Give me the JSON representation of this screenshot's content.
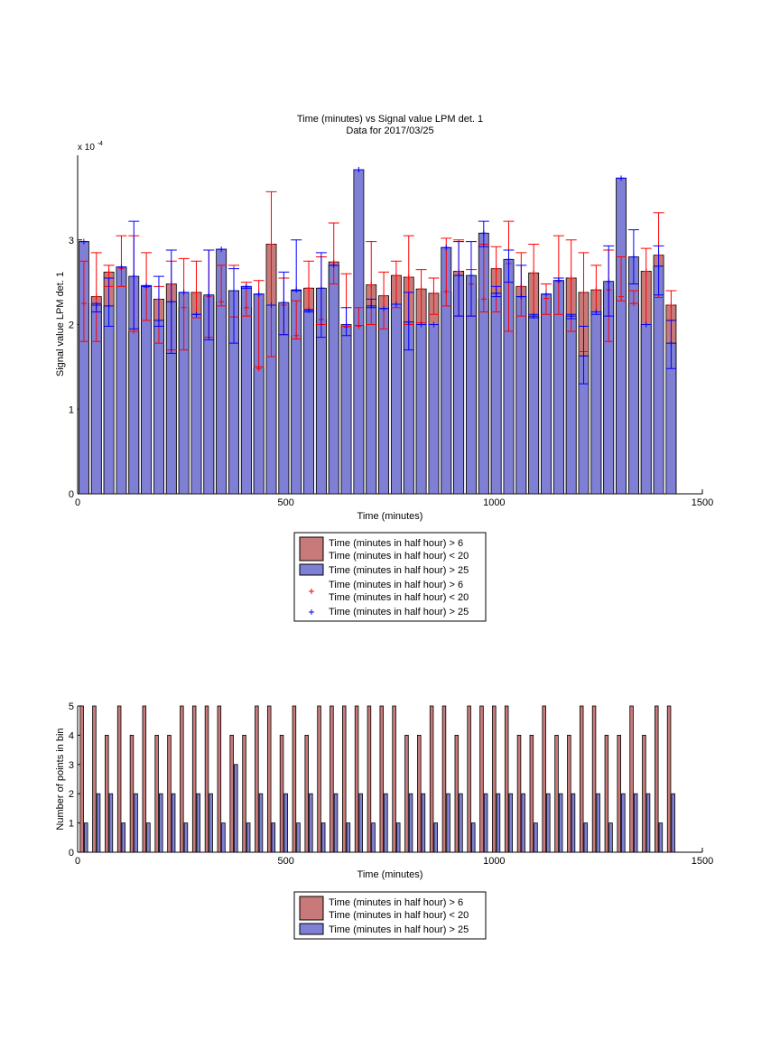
{
  "chart_data": [
    {
      "type": "bar",
      "title": "Time (minutes) vs Signal value LPM det. 1",
      "subtitle": "Data for 2017/03/25",
      "xlabel": "Time (minutes)",
      "ylabel": "Signal value LPM det. 1",
      "y_exponent_label": "x 10",
      "y_exponent_power": "-4",
      "xlim": [
        0,
        1500
      ],
      "ylim": [
        0,
        4.0
      ],
      "y_scale_note": "values in units of 1e-4",
      "xticks": [
        0,
        500,
        1000,
        1500
      ],
      "yticks": [
        0,
        1,
        2,
        3
      ],
      "grid": false,
      "legend_position": "below",
      "bin_width": 24,
      "x": [
        15,
        45,
        75,
        105,
        135,
        165,
        195,
        225,
        255,
        285,
        315,
        345,
        375,
        405,
        435,
        465,
        495,
        525,
        555,
        585,
        615,
        645,
        675,
        705,
        735,
        765,
        795,
        825,
        855,
        885,
        915,
        945,
        975,
        1005,
        1035,
        1065,
        1095,
        1125,
        1155,
        1185,
        1215,
        1245,
        1275,
        1305,
        1335,
        1365,
        1395,
        1425
      ],
      "series": [
        {
          "name": "Time (minutes in half hour) > 6\nTime (minutes in half hour) < 20",
          "color": "#c87a7a",
          "values": [
            2.25,
            2.33,
            2.62,
            2.66,
            1.92,
            2.44,
            2.3,
            2.48,
            2.2,
            2.38,
            2.33,
            2.27,
            2.4,
            2.2,
            1.48,
            2.95,
            2.23,
            1.87,
            2.43,
            2.06,
            2.74,
            1.97,
            1.98,
            2.47,
            2.34,
            2.58,
            2.56,
            2.42,
            2.37,
            2.39,
            2.63,
            2.48,
            2.3,
            2.66,
            2.72,
            2.45,
            2.61,
            2.31,
            2.51,
            2.55,
            2.38,
            2.41,
            2.41,
            2.33,
            2.25,
            2.63,
            2.82,
            2.23
          ],
          "err_low": [
            1.8,
            1.8,
            2.45,
            2.45,
            1.92,
            2.05,
            1.78,
            1.7,
            1.7,
            2.08,
            1.85,
            2.22,
            2.09,
            2.1,
            1.5,
            1.62,
            1.88,
            1.83,
            2.18,
            2.0,
            2.48,
            1.98,
            1.99,
            2.0,
            1.95,
            2.2,
            2.0,
            2.02,
            2.12,
            2.22,
            2.1,
            2.1,
            2.15,
            2.15,
            1.92,
            2.1,
            2.08,
            2.12,
            2.12,
            1.92,
            1.68,
            2.15,
            1.8,
            2.28,
            2.25,
            2.0,
            2.32,
            2.05
          ],
          "err_high": [
            2.75,
            2.85,
            2.7,
            3.05,
            3.05,
            2.85,
            2.45,
            2.75,
            2.78,
            2.75,
            2.88,
            2.7,
            2.7,
            2.5,
            2.52,
            3.57,
            2.55,
            2.28,
            2.75,
            2.8,
            3.2,
            2.6,
            2.2,
            2.98,
            2.62,
            2.75,
            3.05,
            2.65,
            2.55,
            3.02,
            3.0,
            2.65,
            2.95,
            2.92,
            3.22,
            2.85,
            2.95,
            2.48,
            3.05,
            3.0,
            2.85,
            2.7,
            2.88,
            2.8,
            2.4,
            2.9,
            3.32,
            2.4
          ]
        },
        {
          "name": "Time (minutes in half hour) > 25",
          "color": "#7f7fd5",
          "values": [
            2.98,
            2.23,
            2.22,
            2.68,
            2.57,
            2.46,
            2.05,
            2.27,
            2.38,
            2.12,
            2.35,
            2.89,
            2.4,
            2.45,
            2.36,
            2.23,
            2.26,
            2.41,
            2.17,
            2.43,
            2.7,
            2.0,
            3.83,
            2.22,
            2.19,
            2.24,
            2.03,
            2.0,
            2.0,
            2.91,
            2.58,
            2.58,
            3.08,
            2.37,
            2.77,
            2.33,
            2.1,
            2.36,
            2.52,
            2.1,
            1.63,
            2.15,
            2.51,
            3.73,
            2.8,
            2.0,
            2.69,
            1.78
          ],
          "err_low": [
            2.98,
            2.15,
            1.98,
            2.68,
            1.95,
            2.45,
            1.98,
            1.66,
            2.38,
            2.12,
            1.82,
            2.89,
            1.78,
            2.43,
            2.36,
            2.23,
            1.88,
            2.4,
            2.15,
            1.85,
            2.7,
            1.87,
            3.83,
            2.2,
            2.19,
            2.24,
            1.7,
            2.0,
            2.0,
            2.91,
            2.1,
            2.1,
            2.92,
            2.33,
            2.5,
            2.33,
            2.08,
            2.36,
            2.52,
            2.07,
            1.3,
            2.12,
            2.1,
            3.73,
            2.48,
            2.0,
            2.35,
            1.48
          ],
          "err_high": [
            2.98,
            2.25,
            2.55,
            2.68,
            3.22,
            2.46,
            2.57,
            2.88,
            2.38,
            2.12,
            2.88,
            2.89,
            2.66,
            2.45,
            2.36,
            2.23,
            2.62,
            3.0,
            2.17,
            2.85,
            2.7,
            2.2,
            3.83,
            2.3,
            2.19,
            2.24,
            2.38,
            2.0,
            2.0,
            2.91,
            2.98,
            2.98,
            3.22,
            2.45,
            2.88,
            2.7,
            2.12,
            2.36,
            2.55,
            2.12,
            1.98,
            2.15,
            2.93,
            3.73,
            3.12,
            2.0,
            2.93,
            2.05
          ]
        }
      ],
      "legend": [
        {
          "label": "Time (minutes in half hour) > 6\nTime (minutes in half hour) < 20",
          "kind": "patch",
          "color": "#c87a7a"
        },
        {
          "label": "Time (minutes in half hour) > 25",
          "kind": "patch",
          "color": "#7f7fd5"
        },
        {
          "label": "Time (minutes in half hour) > 6\nTime (minutes in half hour) < 20",
          "kind": "marker",
          "color": "#ff0000"
        },
        {
          "label": "Time (minutes in half hour) > 25",
          "kind": "marker",
          "color": "#0000ff"
        }
      ]
    },
    {
      "type": "bar",
      "title": "",
      "xlabel": "Time (minutes)",
      "ylabel": "Number of points in bin",
      "xlim": [
        0,
        1500
      ],
      "ylim": [
        0,
        5
      ],
      "xticks": [
        0,
        500,
        1000,
        1500
      ],
      "yticks": [
        0,
        1,
        2,
        3,
        4,
        5
      ],
      "grid": false,
      "legend_position": "below",
      "bar_width": 8,
      "x": [
        15,
        45,
        75,
        105,
        135,
        165,
        195,
        225,
        255,
        285,
        315,
        345,
        375,
        405,
        435,
        465,
        495,
        525,
        555,
        585,
        615,
        645,
        675,
        705,
        735,
        765,
        795,
        825,
        855,
        885,
        915,
        945,
        975,
        1005,
        1035,
        1065,
        1095,
        1125,
        1155,
        1185,
        1215,
        1245,
        1275,
        1305,
        1335,
        1365,
        1395,
        1425
      ],
      "series": [
        {
          "name": "Time (minutes in half hour) > 6\nTime (minutes in half hour) < 20",
          "color": "#c87a7a",
          "values": [
            5,
            5,
            4,
            5,
            4,
            5,
            4,
            4,
            5,
            5,
            5,
            5,
            4,
            4,
            5,
            5,
            4,
            5,
            4,
            5,
            5,
            5,
            5,
            5,
            5,
            5,
            4,
            4,
            5,
            5,
            4,
            5,
            5,
            5,
            5,
            4,
            4,
            5,
            4,
            4,
            5,
            5,
            4,
            4,
            5,
            4,
            5,
            5
          ]
        },
        {
          "name": "Time (minutes in half hour) > 25",
          "color": "#7f7fd5",
          "values": [
            1,
            2,
            2,
            1,
            2,
            1,
            2,
            2,
            1,
            2,
            2,
            1,
            3,
            1,
            2,
            1,
            2,
            1,
            2,
            1,
            2,
            1,
            2,
            1,
            2,
            1,
            2,
            2,
            1,
            2,
            2,
            1,
            2,
            2,
            2,
            2,
            1,
            2,
            2,
            2,
            1,
            2,
            1,
            2,
            2,
            2,
            1,
            2
          ]
        }
      ],
      "legend": [
        {
          "label": "Time (minutes in half hour) > 6\nTime (minutes in half hour) < 20",
          "kind": "patch",
          "color": "#c87a7a"
        },
        {
          "label": "Time (minutes in half hour) > 25",
          "kind": "patch",
          "color": "#7f7fd5"
        }
      ]
    }
  ]
}
